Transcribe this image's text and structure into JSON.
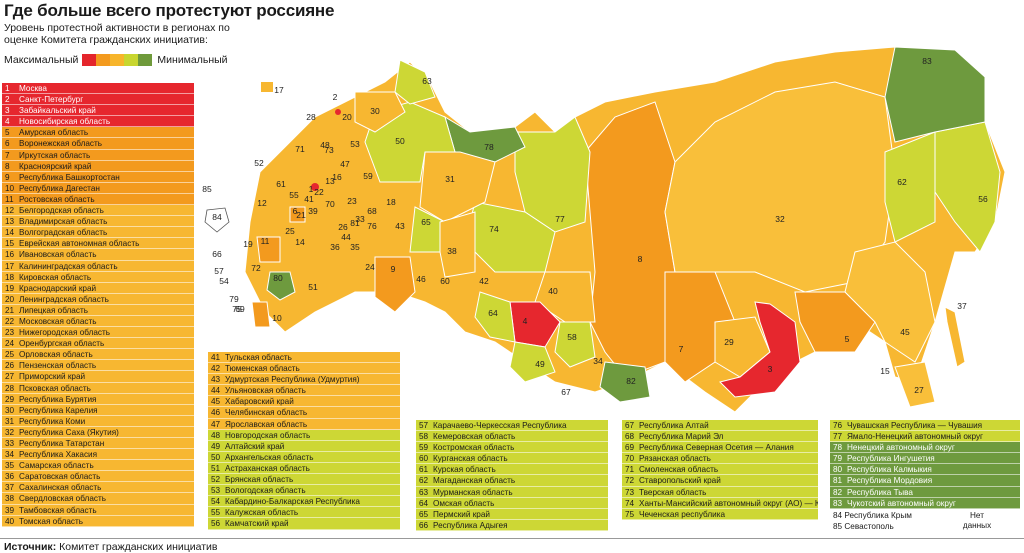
{
  "title": "Где больше всего протестуют россияне",
  "subtitle": "Уровень протестной активности в регионах по оценке Комитета гражданских инициатив:",
  "legend": {
    "max_label": "Максимальный",
    "min_label": "Минимальный",
    "colors": [
      "#e4252c",
      "#f39a1e",
      "#f7b52b",
      "#c8d62f",
      "#6f9a3b"
    ]
  },
  "tier_colors": {
    "red": "#e6272e",
    "orange": "#f39a1e",
    "amber": "#f7b731",
    "lime": "#cdd735",
    "green": "#6e9a3e"
  },
  "regions": [
    {
      "n": "1",
      "name": "Москва",
      "tier": "red"
    },
    {
      "n": "2",
      "name": "Санкт-Петербург",
      "tier": "red"
    },
    {
      "n": "3",
      "name": "Забайкальский край",
      "tier": "red"
    },
    {
      "n": "4",
      "name": "Новосибирская область",
      "tier": "red"
    },
    {
      "n": "5",
      "name": "Амурская область",
      "tier": "orange"
    },
    {
      "n": "6",
      "name": "Воронежская область",
      "tier": "orange"
    },
    {
      "n": "7",
      "name": "Иркутская область",
      "tier": "orange"
    },
    {
      "n": "8",
      "name": "Красноярский край",
      "tier": "orange"
    },
    {
      "n": "9",
      "name": "Республика Башкортостан",
      "tier": "orange"
    },
    {
      "n": "10",
      "name": "Республика Дагестан",
      "tier": "orange"
    },
    {
      "n": "11",
      "name": "Ростовская область",
      "tier": "orange"
    },
    {
      "n": "12",
      "name": "Белгородская область",
      "tier": "amber"
    },
    {
      "n": "13",
      "name": "Владимирская область",
      "tier": "amber"
    },
    {
      "n": "14",
      "name": "Волгоградская область",
      "tier": "amber"
    },
    {
      "n": "15",
      "name": "Еврейская автономная область",
      "tier": "amber"
    },
    {
      "n": "16",
      "name": "Ивановская область",
      "tier": "amber"
    },
    {
      "n": "17",
      "name": "Калининградская область",
      "tier": "amber"
    },
    {
      "n": "18",
      "name": "Кировская область",
      "tier": "amber"
    },
    {
      "n": "19",
      "name": "Краснодарский край",
      "tier": "amber"
    },
    {
      "n": "20",
      "name": "Ленинградская область",
      "tier": "amber"
    },
    {
      "n": "21",
      "name": "Липецкая область",
      "tier": "amber"
    },
    {
      "n": "22",
      "name": "Московская область",
      "tier": "amber"
    },
    {
      "n": "23",
      "name": "Нижегородская область",
      "tier": "amber"
    },
    {
      "n": "24",
      "name": "Оренбургская область",
      "tier": "amber"
    },
    {
      "n": "25",
      "name": "Орловская область",
      "tier": "amber"
    },
    {
      "n": "26",
      "name": "Пензенская область",
      "tier": "amber"
    },
    {
      "n": "27",
      "name": "Приморский край",
      "tier": "amber"
    },
    {
      "n": "28",
      "name": "Псковская область",
      "tier": "amber"
    },
    {
      "n": "29",
      "name": "Республика Бурятия",
      "tier": "amber"
    },
    {
      "n": "30",
      "name": "Республика Карелия",
      "tier": "amber"
    },
    {
      "n": "31",
      "name": "Республика Коми",
      "tier": "amber"
    },
    {
      "n": "32",
      "name": "Республика Саха (Якутия)",
      "tier": "amber"
    },
    {
      "n": "33",
      "name": "Республика Татарстан",
      "tier": "amber"
    },
    {
      "n": "34",
      "name": "Республика Хакасия",
      "tier": "amber"
    },
    {
      "n": "35",
      "name": "Самарская область",
      "tier": "amber"
    },
    {
      "n": "36",
      "name": "Саратовская область",
      "tier": "amber"
    },
    {
      "n": "37",
      "name": "Сахалинская область",
      "tier": "amber"
    },
    {
      "n": "38",
      "name": "Свердловская область",
      "tier": "amber"
    },
    {
      "n": "39",
      "name": "Тамбовская область",
      "tier": "amber"
    },
    {
      "n": "40",
      "name": "Томская область",
      "tier": "amber"
    },
    {
      "n": "41",
      "name": "Тульская область",
      "tier": "amber"
    },
    {
      "n": "42",
      "name": "Тюменская область",
      "tier": "amber"
    },
    {
      "n": "43",
      "name": "Удмуртская Республика (Удмуртия)",
      "tier": "amber"
    },
    {
      "n": "44",
      "name": "Ульяновская область",
      "tier": "amber"
    },
    {
      "n": "45",
      "name": "Хабаровский край",
      "tier": "amber"
    },
    {
      "n": "46",
      "name": "Челябинская область",
      "tier": "amber"
    },
    {
      "n": "47",
      "name": "Ярославская область",
      "tier": "amber"
    },
    {
      "n": "48",
      "name": "Новгородская область",
      "tier": "lime"
    },
    {
      "n": "49",
      "name": "Алтайский край",
      "tier": "lime"
    },
    {
      "n": "50",
      "name": "Архангельская область",
      "tier": "lime"
    },
    {
      "n": "51",
      "name": "Астраханская область",
      "tier": "lime"
    },
    {
      "n": "52",
      "name": "Брянская область",
      "tier": "lime"
    },
    {
      "n": "53",
      "name": "Вологодская область",
      "tier": "lime"
    },
    {
      "n": "54",
      "name": "Кабардино-Балкарская Республика",
      "tier": "lime"
    },
    {
      "n": "55",
      "name": "Калужская область",
      "tier": "lime"
    },
    {
      "n": "56",
      "name": "Камчатский край",
      "tier": "lime"
    },
    {
      "n": "57",
      "name": "Карачаево-Черкесская Республика",
      "tier": "lime"
    },
    {
      "n": "58",
      "name": "Кемеровская область",
      "tier": "lime"
    },
    {
      "n": "59",
      "name": "Костромская область",
      "tier": "lime"
    },
    {
      "n": "60",
      "name": "Курганская область",
      "tier": "lime"
    },
    {
      "n": "61",
      "name": "Курская область",
      "tier": "lime"
    },
    {
      "n": "62",
      "name": "Магаданская область",
      "tier": "lime"
    },
    {
      "n": "63",
      "name": "Мурманская область",
      "tier": "lime"
    },
    {
      "n": "64",
      "name": "Омская область",
      "tier": "lime"
    },
    {
      "n": "65",
      "name": "Пермский край",
      "tier": "lime"
    },
    {
      "n": "66",
      "name": "Республика Адыгея",
      "tier": "lime"
    },
    {
      "n": "67",
      "name": "Республика Алтай",
      "tier": "lime"
    },
    {
      "n": "68",
      "name": "Республика Марий Эл",
      "tier": "lime"
    },
    {
      "n": "69",
      "name": "Республика Северная Осетия — Алания",
      "tier": "lime"
    },
    {
      "n": "70",
      "name": "Рязанская область",
      "tier": "lime"
    },
    {
      "n": "71",
      "name": "Смоленская область",
      "tier": "lime"
    },
    {
      "n": "72",
      "name": "Ставропольский край",
      "tier": "lime"
    },
    {
      "n": "73",
      "name": "Тверская область",
      "tier": "lime"
    },
    {
      "n": "74",
      "name": "Ханты-Мансийский автономный округ (АО) — Югра",
      "tier": "lime"
    },
    {
      "n": "75",
      "name": "Чеченская республика",
      "tier": "lime"
    },
    {
      "n": "76",
      "name": "Чувашская Республика — Чувашия",
      "tier": "lime"
    },
    {
      "n": "77",
      "name": "Ямало-Ненецкий автономный округ",
      "tier": "lime"
    },
    {
      "n": "78",
      "name": "Ненецкий автономный округ",
      "tier": "green"
    },
    {
      "n": "79",
      "name": "Республика Ингушетия",
      "tier": "green"
    },
    {
      "n": "80",
      "name": "Республика Калмыкия",
      "tier": "green"
    },
    {
      "n": "81",
      "name": "Республика Мордовия",
      "tier": "green"
    },
    {
      "n": "82",
      "name": "Республика Тыва",
      "tier": "green"
    },
    {
      "n": "83",
      "name": "Чукотский автономный округ",
      "tier": "green"
    }
  ],
  "no_data": {
    "label": "Нет данных",
    "items": [
      {
        "n": "84",
        "name": "Республика Крым"
      },
      {
        "n": "85",
        "name": "Севастополь"
      }
    ]
  },
  "map_labels": [
    "1",
    "2",
    "3",
    "4",
    "5",
    "6",
    "7",
    "8",
    "9",
    "10",
    "11",
    "12",
    "13",
    "14",
    "15",
    "16",
    "17",
    "18",
    "19",
    "20",
    "21",
    "22",
    "23",
    "24",
    "25",
    "26",
    "27",
    "28",
    "29",
    "30",
    "31",
    "32",
    "33",
    "34",
    "35",
    "36",
    "37",
    "38",
    "39",
    "40",
    "41",
    "42",
    "43",
    "44",
    "45",
    "46",
    "47",
    "48",
    "49",
    "50",
    "51",
    "52",
    "53",
    "54",
    "55",
    "56",
    "57",
    "58",
    "59",
    "60",
    "61",
    "62",
    "63",
    "64",
    "65",
    "66",
    "67",
    "68",
    "69",
    "70",
    "71",
    "72",
    "73",
    "74",
    "75",
    "76",
    "77",
    "78",
    "79",
    "80",
    "81",
    "82",
    "83",
    "84",
    "85"
  ],
  "source": {
    "label": "Источник:",
    "text": "Комитет гражданских инициатив"
  }
}
